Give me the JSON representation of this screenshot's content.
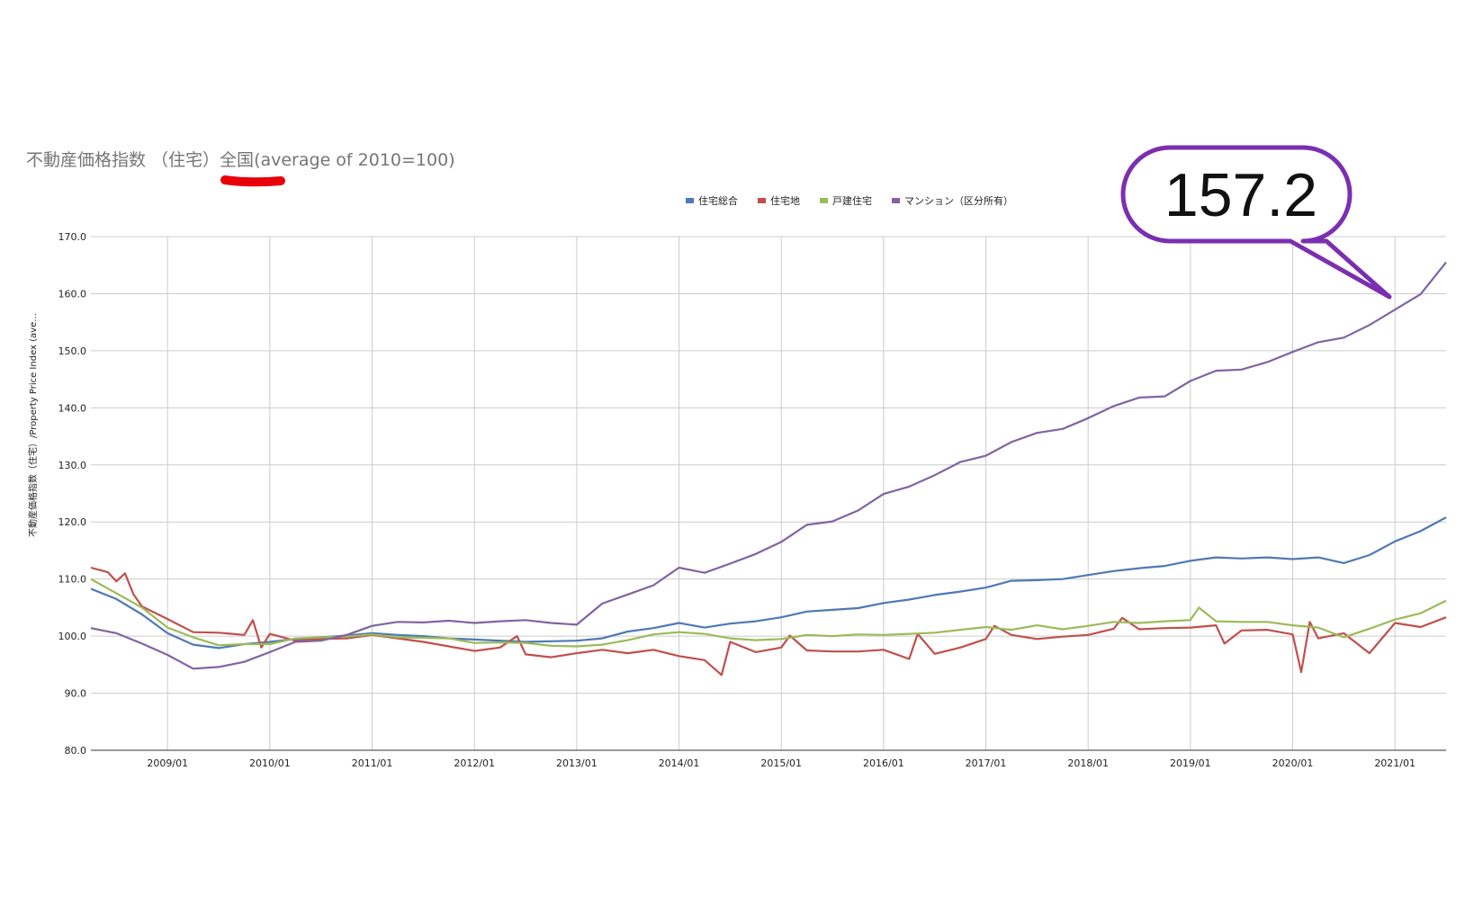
{
  "colors": {
    "accent_underline": "#e8000b",
    "callout_border": "#7b2fb0"
  },
  "callout": {
    "text": "157.2"
  },
  "chart_data": {
    "type": "line",
    "title": "不動産価格指数 （住宅）全国(average of 2010=100)",
    "title_prefix": "不動産価格指数 （住宅）",
    "title_highlight": "全国",
    "title_suffix": "(average of 2010=100)",
    "ylabel": "不動産価格指数（住宅）/Property Price Index (ave...",
    "xlabel": "",
    "ylim": [
      80,
      170
    ],
    "yticks": [
      "80.0",
      "90.0",
      "100.0",
      "110.0",
      "120.0",
      "130.0",
      "140.0",
      "150.0",
      "160.0",
      "170.0"
    ],
    "xticks": [
      "2009/01",
      "2010/01",
      "2011/01",
      "2012/01",
      "2013/01",
      "2014/01",
      "2015/01",
      "2016/01",
      "2017/01",
      "2018/01",
      "2019/01",
      "2020/01",
      "2021/01"
    ],
    "x_start": "2008/04",
    "x_end": "2021/07",
    "grid": true,
    "legend_position": "top",
    "series": [
      {
        "name": "住宅総合",
        "color": "#4e79b4",
        "points": [
          [
            "2008/04",
            108.3
          ],
          [
            "2008/07",
            106.5
          ],
          [
            "2008/10",
            103.8
          ],
          [
            "2009/01",
            100.5
          ],
          [
            "2009/04",
            98.5
          ],
          [
            "2009/07",
            97.9
          ],
          [
            "2009/10",
            98.6
          ],
          [
            "2010/01",
            99.0
          ],
          [
            "2010/04",
            99.5
          ],
          [
            "2010/07",
            99.8
          ],
          [
            "2010/10",
            100.1
          ],
          [
            "2011/01",
            100.5
          ],
          [
            "2011/04",
            100.2
          ],
          [
            "2011/07",
            100.0
          ],
          [
            "2011/10",
            99.6
          ],
          [
            "2012/01",
            99.4
          ],
          [
            "2012/04",
            99.2
          ],
          [
            "2012/07",
            99.0
          ],
          [
            "2012/10",
            99.1
          ],
          [
            "2013/01",
            99.2
          ],
          [
            "2013/04",
            99.6
          ],
          [
            "2013/07",
            100.8
          ],
          [
            "2013/10",
            101.4
          ],
          [
            "2014/01",
            102.3
          ],
          [
            "2014/04",
            101.5
          ],
          [
            "2014/07",
            102.2
          ],
          [
            "2014/10",
            102.6
          ],
          [
            "2015/01",
            103.3
          ],
          [
            "2015/04",
            104.3
          ],
          [
            "2015/07",
            104.6
          ],
          [
            "2015/10",
            104.9
          ],
          [
            "2016/01",
            105.8
          ],
          [
            "2016/04",
            106.4
          ],
          [
            "2016/07",
            107.2
          ],
          [
            "2016/10",
            107.8
          ],
          [
            "2017/01",
            108.5
          ],
          [
            "2017/04",
            109.7
          ],
          [
            "2017/07",
            109.8
          ],
          [
            "2017/10",
            110.0
          ],
          [
            "2018/01",
            110.7
          ],
          [
            "2018/04",
            111.4
          ],
          [
            "2018/07",
            111.9
          ],
          [
            "2018/10",
            112.3
          ],
          [
            "2019/01",
            113.2
          ],
          [
            "2019/04",
            113.8
          ],
          [
            "2019/07",
            113.6
          ],
          [
            "2019/10",
            113.8
          ],
          [
            "2020/01",
            113.5
          ],
          [
            "2020/04",
            113.8
          ],
          [
            "2020/07",
            112.8
          ],
          [
            "2020/10",
            114.2
          ],
          [
            "2021/01",
            116.6
          ],
          [
            "2021/04",
            118.4
          ],
          [
            "2021/07",
            120.8
          ]
        ]
      },
      {
        "name": "住宅地",
        "color": "#c0504d",
        "points": [
          [
            "2008/04",
            112.0
          ],
          [
            "2008/06",
            111.2
          ],
          [
            "2008/07",
            109.6
          ],
          [
            "2008/08",
            111.0
          ],
          [
            "2008/09",
            107.3
          ],
          [
            "2008/10",
            105.2
          ],
          [
            "2009/01",
            103.0
          ],
          [
            "2009/04",
            100.7
          ],
          [
            "2009/07",
            100.6
          ],
          [
            "2009/10",
            100.2
          ],
          [
            "2009/11",
            102.8
          ],
          [
            "2009/12",
            98.0
          ],
          [
            "2010/01",
            100.4
          ],
          [
            "2010/04",
            99.2
          ],
          [
            "2010/07",
            99.5
          ],
          [
            "2010/10",
            99.6
          ],
          [
            "2011/01",
            100.2
          ],
          [
            "2011/04",
            99.6
          ],
          [
            "2011/07",
            99.0
          ],
          [
            "2011/10",
            98.2
          ],
          [
            "2012/01",
            97.4
          ],
          [
            "2012/04",
            98.0
          ],
          [
            "2012/06",
            100.0
          ],
          [
            "2012/07",
            96.8
          ],
          [
            "2012/10",
            96.3
          ],
          [
            "2013/01",
            97.0
          ],
          [
            "2013/04",
            97.6
          ],
          [
            "2013/07",
            97.0
          ],
          [
            "2013/10",
            97.6
          ],
          [
            "2014/01",
            96.5
          ],
          [
            "2014/04",
            95.8
          ],
          [
            "2014/06",
            93.2
          ],
          [
            "2014/07",
            99.0
          ],
          [
            "2014/10",
            97.2
          ],
          [
            "2015/01",
            98.0
          ],
          [
            "2015/02",
            100.1
          ],
          [
            "2015/04",
            97.5
          ],
          [
            "2015/07",
            97.3
          ],
          [
            "2015/10",
            97.3
          ],
          [
            "2016/01",
            97.6
          ],
          [
            "2016/04",
            96.0
          ],
          [
            "2016/05",
            100.4
          ],
          [
            "2016/07",
            96.9
          ],
          [
            "2016/10",
            98.0
          ],
          [
            "2017/01",
            99.5
          ],
          [
            "2017/02",
            101.8
          ],
          [
            "2017/04",
            100.2
          ],
          [
            "2017/07",
            99.5
          ],
          [
            "2017/10",
            99.9
          ],
          [
            "2018/01",
            100.2
          ],
          [
            "2018/04",
            101.3
          ],
          [
            "2018/05",
            103.2
          ],
          [
            "2018/07",
            101.2
          ],
          [
            "2018/10",
            101.4
          ],
          [
            "2019/01",
            101.5
          ],
          [
            "2019/04",
            101.9
          ],
          [
            "2019/05",
            98.7
          ],
          [
            "2019/07",
            101.0
          ],
          [
            "2019/10",
            101.1
          ],
          [
            "2020/01",
            100.3
          ],
          [
            "2020/02",
            93.7
          ],
          [
            "2020/03",
            102.5
          ],
          [
            "2020/04",
            99.6
          ],
          [
            "2020/07",
            100.5
          ],
          [
            "2020/10",
            97.0
          ],
          [
            "2021/01",
            102.3
          ],
          [
            "2021/04",
            101.6
          ],
          [
            "2021/07",
            103.3
          ]
        ]
      },
      {
        "name": "戸建住宅",
        "color": "#9bbb59",
        "points": [
          [
            "2008/04",
            110.0
          ],
          [
            "2008/07",
            107.5
          ],
          [
            "2008/10",
            105.0
          ],
          [
            "2009/01",
            101.5
          ],
          [
            "2009/04",
            99.8
          ],
          [
            "2009/07",
            98.4
          ],
          [
            "2009/10",
            98.6
          ],
          [
            "2010/01",
            98.6
          ],
          [
            "2010/04",
            99.6
          ],
          [
            "2010/07",
            99.8
          ],
          [
            "2010/10",
            99.9
          ],
          [
            "2011/01",
            100.3
          ],
          [
            "2011/04",
            99.8
          ],
          [
            "2011/07",
            99.7
          ],
          [
            "2011/10",
            99.6
          ],
          [
            "2012/01",
            98.8
          ],
          [
            "2012/04",
            98.9
          ],
          [
            "2012/07",
            98.8
          ],
          [
            "2012/10",
            98.3
          ],
          [
            "2013/01",
            98.2
          ],
          [
            "2013/04",
            98.5
          ],
          [
            "2013/07",
            99.3
          ],
          [
            "2013/10",
            100.3
          ],
          [
            "2014/01",
            100.7
          ],
          [
            "2014/04",
            100.4
          ],
          [
            "2014/07",
            99.6
          ],
          [
            "2014/10",
            99.3
          ],
          [
            "2015/01",
            99.5
          ],
          [
            "2015/04",
            100.2
          ],
          [
            "2015/07",
            100.0
          ],
          [
            "2015/10",
            100.3
          ],
          [
            "2016/01",
            100.2
          ],
          [
            "2016/04",
            100.4
          ],
          [
            "2016/07",
            100.6
          ],
          [
            "2016/10",
            101.1
          ],
          [
            "2017/01",
            101.6
          ],
          [
            "2017/04",
            101.1
          ],
          [
            "2017/07",
            101.9
          ],
          [
            "2017/10",
            101.2
          ],
          [
            "2018/01",
            101.8
          ],
          [
            "2018/04",
            102.5
          ],
          [
            "2018/07",
            102.3
          ],
          [
            "2018/10",
            102.6
          ],
          [
            "2019/01",
            102.8
          ],
          [
            "2019/02",
            105.0
          ],
          [
            "2019/04",
            102.6
          ],
          [
            "2019/07",
            102.5
          ],
          [
            "2019/10",
            102.5
          ],
          [
            "2020/01",
            101.9
          ],
          [
            "2020/04",
            101.5
          ],
          [
            "2020/07",
            99.8
          ],
          [
            "2020/10",
            101.3
          ],
          [
            "2021/01",
            102.9
          ],
          [
            "2021/04",
            104.0
          ],
          [
            "2021/07",
            106.2
          ]
        ]
      },
      {
        "name": "マンション（区分所有）",
        "color": "#8064a2",
        "points": [
          [
            "2008/04",
            101.4
          ],
          [
            "2008/07",
            100.5
          ],
          [
            "2008/10",
            98.7
          ],
          [
            "2009/01",
            96.7
          ],
          [
            "2009/04",
            94.3
          ],
          [
            "2009/07",
            94.6
          ],
          [
            "2009/10",
            95.5
          ],
          [
            "2010/01",
            97.2
          ],
          [
            "2010/04",
            99.0
          ],
          [
            "2010/07",
            99.2
          ],
          [
            "2010/10",
            100.2
          ],
          [
            "2011/01",
            101.8
          ],
          [
            "2011/04",
            102.5
          ],
          [
            "2011/07",
            102.4
          ],
          [
            "2011/10",
            102.7
          ],
          [
            "2012/01",
            102.3
          ],
          [
            "2012/04",
            102.6
          ],
          [
            "2012/07",
            102.8
          ],
          [
            "2012/10",
            102.3
          ],
          [
            "2013/01",
            102.0
          ],
          [
            "2013/04",
            105.7
          ],
          [
            "2013/07",
            107.3
          ],
          [
            "2013/10",
            108.9
          ],
          [
            "2014/01",
            112.0
          ],
          [
            "2014/04",
            111.1
          ],
          [
            "2014/07",
            112.7
          ],
          [
            "2014/10",
            114.4
          ],
          [
            "2015/01",
            116.5
          ],
          [
            "2015/04",
            119.5
          ],
          [
            "2015/07",
            120.1
          ],
          [
            "2015/10",
            122.0
          ],
          [
            "2016/01",
            124.9
          ],
          [
            "2016/04",
            126.2
          ],
          [
            "2016/07",
            128.2
          ],
          [
            "2016/10",
            130.5
          ],
          [
            "2017/01",
            131.6
          ],
          [
            "2017/04",
            134.0
          ],
          [
            "2017/07",
            135.6
          ],
          [
            "2017/10",
            136.3
          ],
          [
            "2018/01",
            138.2
          ],
          [
            "2018/04",
            140.3
          ],
          [
            "2018/07",
            141.8
          ],
          [
            "2018/10",
            142.0
          ],
          [
            "2019/01",
            144.7
          ],
          [
            "2019/04",
            146.5
          ],
          [
            "2019/07",
            146.7
          ],
          [
            "2019/10",
            148.0
          ],
          [
            "2020/01",
            149.8
          ],
          [
            "2020/04",
            151.5
          ],
          [
            "2020/07",
            152.3
          ],
          [
            "2020/10",
            154.5
          ],
          [
            "2021/01",
            157.2
          ],
          [
            "2021/04",
            159.9
          ],
          [
            "2021/07",
            165.5
          ]
        ]
      }
    ]
  }
}
